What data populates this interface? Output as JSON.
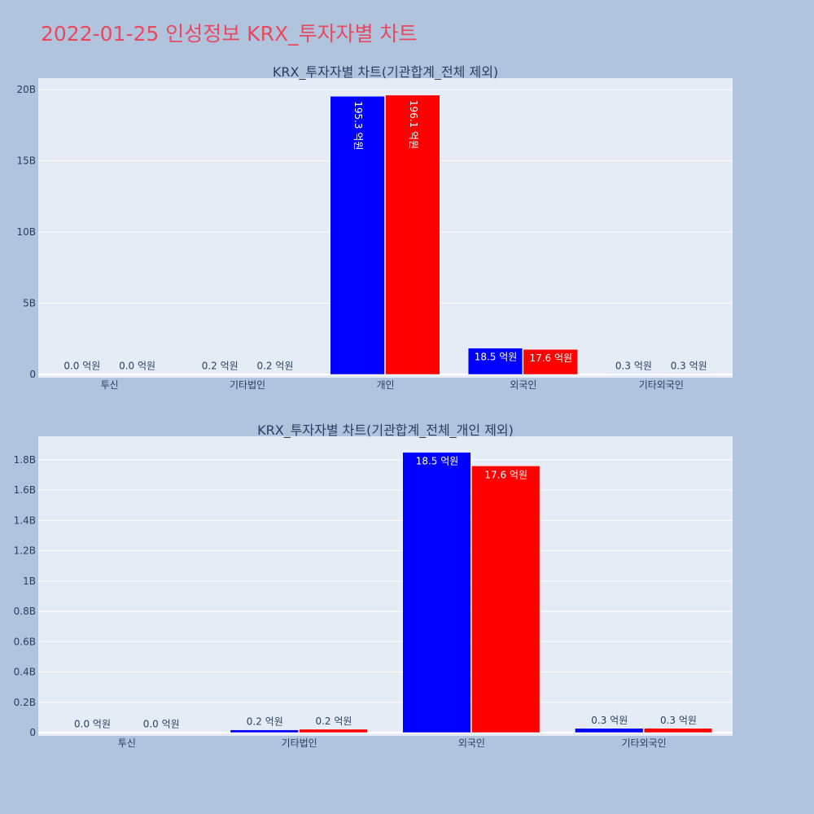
{
  "page": {
    "title": "2022-01-25 인성정보 KRX_투자자별 차트"
  },
  "chart_data": [
    {
      "type": "bar",
      "title": "KRX_투자자별 차트(기관합계_전체 제외)",
      "categories": [
        "투신",
        "기타법인",
        "개인",
        "외국인",
        "기타외국인"
      ],
      "ylim": [
        0,
        20000000000
      ],
      "yticks": [
        0,
        5000000000,
        10000000000,
        15000000000,
        20000000000
      ],
      "ytick_labels": [
        "0",
        "5B",
        "10B",
        "15B",
        "20B"
      ],
      "grid": true,
      "series": [
        {
          "color": "#0000ff",
          "values": [
            2000000,
            15000000,
            19530000000,
            1850000000,
            30000000
          ],
          "labels": [
            "0.0 억원",
            "0.2 억원",
            "195.3 억원",
            "18.5 억원",
            "0.3 억원"
          ]
        },
        {
          "color": "#ff0000",
          "values": [
            2000000,
            15000000,
            19610000000,
            1760000000,
            30000000
          ],
          "labels": [
            "0.0 억원",
            "0.2 억원",
            "196.1 억원",
            "17.6 억원",
            "0.3 억원"
          ]
        }
      ]
    },
    {
      "type": "bar",
      "title": "KRX_투자자별 차트(기관합계_전체_개인 제외)",
      "categories": [
        "투신",
        "기타법인",
        "외국인",
        "기타외국인"
      ],
      "ylim": [
        0,
        1950000000
      ],
      "yticks": [
        0,
        200000000,
        400000000,
        600000000,
        800000000,
        1000000000,
        1200000000,
        1400000000,
        1600000000,
        1800000000
      ],
      "ytick_labels": [
        "0",
        "0.2B",
        "0.4B",
        "0.6B",
        "0.8B",
        "1B",
        "1.2B",
        "1.4B",
        "1.6B",
        "1.8B"
      ],
      "grid": true,
      "series": [
        {
          "color": "#0000ff",
          "values": [
            2000000,
            18000000,
            1850000000,
            28000000
          ],
          "labels": [
            "0.0 억원",
            "0.2 억원",
            "18.5 억원",
            "0.3 억원"
          ]
        },
        {
          "color": "#ff0000",
          "values": [
            2000000,
            22000000,
            1760000000,
            28000000
          ],
          "labels": [
            "0.0 억원",
            "0.2 억원",
            "17.6 억원",
            "0.3 억원"
          ]
        }
      ]
    }
  ]
}
